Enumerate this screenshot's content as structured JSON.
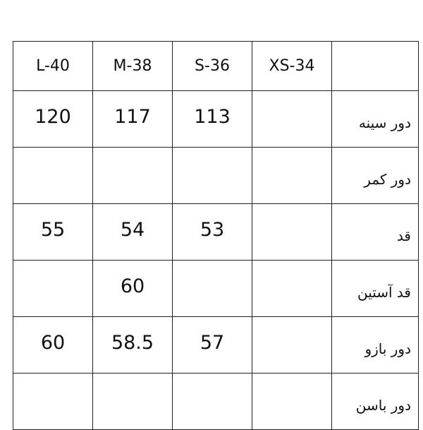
{
  "table": {
    "headers": [
      "L-40",
      "M-38",
      "S-36",
      "XS-34",
      ""
    ],
    "rows": [
      {
        "label": "دور سینه",
        "values": [
          "120",
          "117",
          "113",
          ""
        ]
      },
      {
        "label": "دور کمر",
        "values": [
          "",
          "",
          "",
          ""
        ]
      },
      {
        "label": "قد",
        "values": [
          "55",
          "54",
          "53",
          ""
        ]
      },
      {
        "label": "قد آستین",
        "values": [
          "",
          "60",
          "",
          ""
        ]
      },
      {
        "label": "دور بازو",
        "values": [
          "60",
          "58.5",
          "57",
          ""
        ]
      },
      {
        "label": "دور باسن",
        "values": [
          "",
          "",
          "",
          ""
        ]
      }
    ]
  }
}
